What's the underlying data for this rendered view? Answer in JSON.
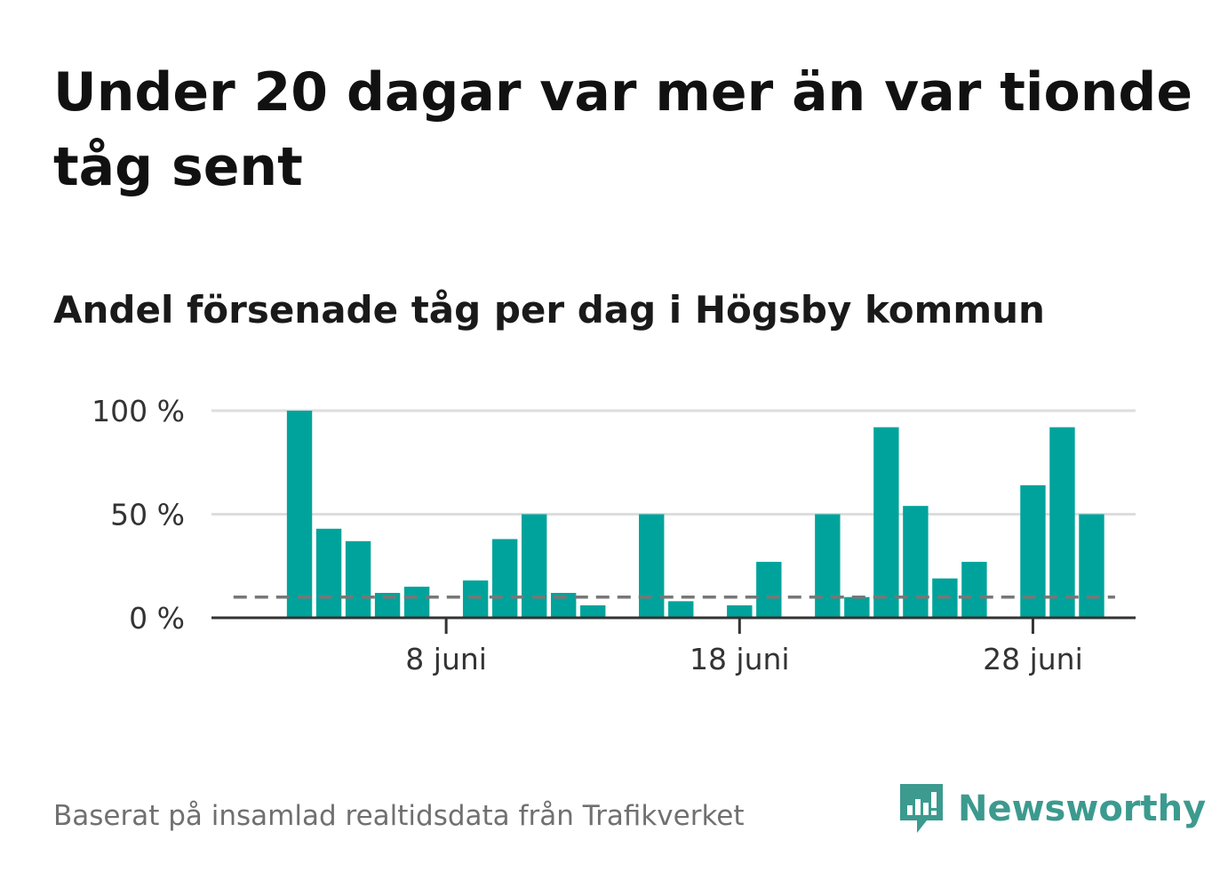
{
  "title": "Under 20 dagar var mer än var tionde tåg sent",
  "subtitle": "Andel försenade tåg per dag i Högsby kommun",
  "footer": "Baserat på insamlad realtidsdata från Trafikverket",
  "brand": {
    "name": "Newsworthy",
    "color": "#3c9a8f",
    "icon": "newsworthy-logo-icon"
  },
  "chart_data": {
    "type": "bar",
    "x_unit": "day of June",
    "x": [
      1,
      2,
      3,
      4,
      5,
      6,
      7,
      8,
      9,
      10,
      11,
      12,
      13,
      14,
      15,
      16,
      17,
      18,
      19,
      20,
      21,
      22,
      23,
      24,
      25,
      26,
      27,
      28,
      29,
      30
    ],
    "values": [
      0,
      0,
      100,
      43,
      37,
      12,
      15,
      0,
      18,
      38,
      50,
      12,
      6,
      0,
      50,
      8,
      0,
      6,
      27,
      0,
      50,
      10,
      92,
      54,
      19,
      27,
      0,
      64,
      92,
      50
    ],
    "xlim": [
      0,
      31.5
    ],
    "ylim": [
      0,
      100
    ],
    "yticks": [
      {
        "value": 0,
        "label": "0 %"
      },
      {
        "value": 50,
        "label": "50 %"
      },
      {
        "value": 100,
        "label": "100 %"
      }
    ],
    "xticks": [
      {
        "value": 8,
        "label": "8 juni"
      },
      {
        "value": 18,
        "label": "18 juni"
      },
      {
        "value": 28,
        "label": "28 juni"
      }
    ],
    "reference_line": {
      "value": 10,
      "style": "dashed",
      "x_from": 0.75,
      "x_to": 30.8
    },
    "bar_color": "#00a39b",
    "reference_color": "#777777",
    "grid": true
  }
}
